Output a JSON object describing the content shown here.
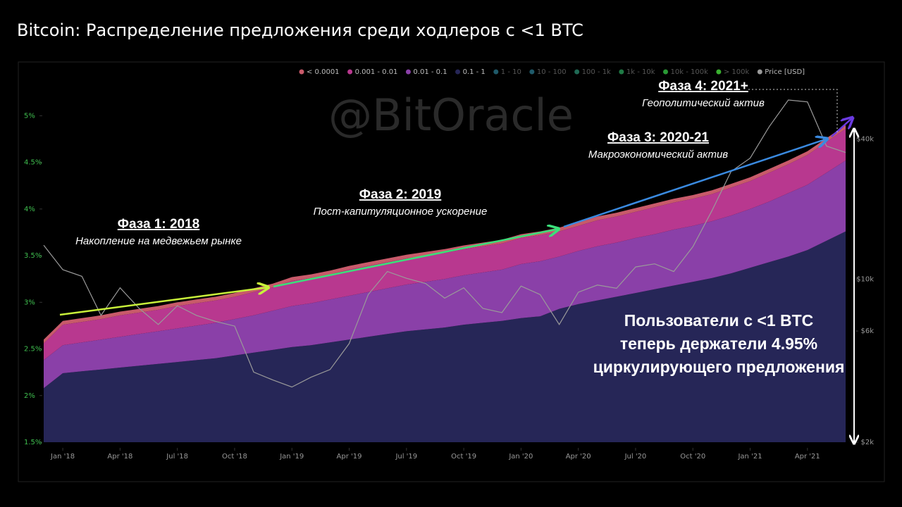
{
  "chart_data": {
    "type": "stacked-area",
    "title": "Bitcoin: Распределение предложения среди ходлеров с <1 BTC",
    "watermark": "@BitOracle",
    "x": [
      "2017-12",
      "2018-01",
      "2018-02",
      "2018-03",
      "2018-04",
      "2018-05",
      "2018-06",
      "2018-07",
      "2018-08",
      "2018-09",
      "2018-10",
      "2018-11",
      "2018-12",
      "2019-01",
      "2019-02",
      "2019-03",
      "2019-04",
      "2019-05",
      "2019-06",
      "2019-07",
      "2019-08",
      "2019-09",
      "2019-10",
      "2019-11",
      "2019-12",
      "2020-01",
      "2020-02",
      "2020-03",
      "2020-04",
      "2020-05",
      "2020-06",
      "2020-07",
      "2020-08",
      "2020-09",
      "2020-10",
      "2020-11",
      "2020-12",
      "2021-01",
      "2021-02",
      "2021-03",
      "2021-04",
      "2021-05",
      "2021-06"
    ],
    "xlim": [
      "2017-12",
      "2021-06"
    ],
    "xticks": [
      {
        "value": "2018-01",
        "label": "Jan '18"
      },
      {
        "value": "2018-04",
        "label": "Apr '18"
      },
      {
        "value": "2018-07",
        "label": "Jul '18"
      },
      {
        "value": "2018-10",
        "label": "Oct '18"
      },
      {
        "value": "2019-01",
        "label": "Jan '19"
      },
      {
        "value": "2019-04",
        "label": "Apr '19"
      },
      {
        "value": "2019-07",
        "label": "Jul '19"
      },
      {
        "value": "2019-10",
        "label": "Oct '19"
      },
      {
        "value": "2020-01",
        "label": "Jan '20"
      },
      {
        "value": "2020-04",
        "label": "Apr '20"
      },
      {
        "value": "2020-07",
        "label": "Jul '20"
      },
      {
        "value": "2020-10",
        "label": "Oct '20"
      },
      {
        "value": "2021-01",
        "label": "Jan '21"
      },
      {
        "value": "2021-04",
        "label": "Apr '21"
      }
    ],
    "ylim": [
      1.5,
      5.35
    ],
    "yticks": [
      {
        "value": 1.5,
        "label": "1.5%"
      },
      {
        "value": 2,
        "label": "2%"
      },
      {
        "value": 2.5,
        "label": "2.5%"
      },
      {
        "value": 3,
        "label": "3%"
      },
      {
        "value": 3.5,
        "label": "3.5%"
      },
      {
        "value": 4,
        "label": "4%"
      },
      {
        "value": 4.5,
        "label": "4.5%"
      },
      {
        "value": 5,
        "label": "5%"
      }
    ],
    "y2lim": [
      2000,
      69500
    ],
    "y2scale": "log",
    "y2ticks": [
      {
        "value": 2000,
        "label": "$2k"
      },
      {
        "value": 6000,
        "label": "$6k"
      },
      {
        "value": 10000,
        "label": "$10k"
      },
      {
        "value": 40000,
        "label": "$40k"
      }
    ],
    "series": [
      {
        "name": "< 0.0001",
        "color": "#c85a6a",
        "values": [
          0.04,
          0.04,
          0.04,
          0.04,
          0.04,
          0.04,
          0.04,
          0.04,
          0.04,
          0.04,
          0.04,
          0.04,
          0.04,
          0.04,
          0.04,
          0.04,
          0.04,
          0.04,
          0.04,
          0.04,
          0.04,
          0.04,
          0.04,
          0.04,
          0.04,
          0.04,
          0.04,
          0.04,
          0.04,
          0.04,
          0.04,
          0.04,
          0.04,
          0.04,
          0.04,
          0.04,
          0.04,
          0.04,
          0.04,
          0.04,
          0.04,
          0.04,
          0.04
        ]
      },
      {
        "name": "0.001 - 0.01",
        "color": "#b8388f",
        "values": [
          0.18,
          0.22,
          0.22,
          0.22,
          0.23,
          0.23,
          0.23,
          0.24,
          0.24,
          0.24,
          0.24,
          0.25,
          0.25,
          0.27,
          0.27,
          0.27,
          0.28,
          0.28,
          0.28,
          0.28,
          0.28,
          0.28,
          0.28,
          0.28,
          0.28,
          0.28,
          0.28,
          0.27,
          0.27,
          0.28,
          0.28,
          0.28,
          0.29,
          0.29,
          0.29,
          0.29,
          0.3,
          0.3,
          0.31,
          0.31,
          0.32,
          0.33,
          0.34
        ]
      },
      {
        "name": "0.01 - 0.1",
        "color": "#8a40a8",
        "values": [
          0.3,
          0.3,
          0.31,
          0.32,
          0.33,
          0.34,
          0.35,
          0.36,
          0.37,
          0.38,
          0.39,
          0.4,
          0.42,
          0.44,
          0.45,
          0.46,
          0.47,
          0.48,
          0.49,
          0.5,
          0.51,
          0.52,
          0.53,
          0.54,
          0.55,
          0.58,
          0.59,
          0.56,
          0.57,
          0.58,
          0.58,
          0.59,
          0.59,
          0.6,
          0.6,
          0.61,
          0.62,
          0.63,
          0.65,
          0.68,
          0.7,
          0.73,
          0.76
        ]
      },
      {
        "name": "0.1 - 1",
        "color": "#262657",
        "values": [
          2.08,
          2.24,
          2.26,
          2.28,
          2.3,
          2.32,
          2.34,
          2.36,
          2.38,
          2.4,
          2.43,
          2.46,
          2.49,
          2.52,
          2.54,
          2.57,
          2.6,
          2.63,
          2.66,
          2.69,
          2.71,
          2.73,
          2.76,
          2.78,
          2.8,
          2.83,
          2.85,
          2.93,
          2.98,
          3.02,
          3.06,
          3.1,
          3.14,
          3.18,
          3.22,
          3.26,
          3.31,
          3.37,
          3.43,
          3.49,
          3.56,
          3.66,
          3.76
        ]
      },
      {
        "name": "Price [USD]",
        "color": "#9a9a9a",
        "axis": "y2",
        "values": [
          14000,
          11000,
          10300,
          7000,
          9200,
          7500,
          6400,
          7700,
          7000,
          6600,
          6300,
          4000,
          3700,
          3450,
          3800,
          4100,
          5300,
          8600,
          10800,
          10100,
          9600,
          8300,
          9200,
          7500,
          7200,
          9350,
          8600,
          6400,
          8800,
          9450,
          9150,
          11300,
          11650,
          10800,
          13800,
          19700,
          29000,
          33100,
          45200,
          58800,
          57700,
          37300,
          35000
        ]
      }
    ],
    "inactive_series": [
      {
        "name": "1 - 10",
        "color": "#1f5a6a"
      },
      {
        "name": "10 - 100",
        "color": "#1f5a6a"
      },
      {
        "name": "100 - 1k",
        "color": "#1f6a55"
      },
      {
        "name": "1k - 10k",
        "color": "#1f7a45"
      },
      {
        "name": "10k - 100k",
        "color": "#2a9a35"
      },
      {
        "name": "> 100k",
        "color": "#3ab030"
      }
    ],
    "annotations": [
      {
        "title": "Фаза 1: 2018",
        "subtitle": "Накопление на медвежьем рынке"
      },
      {
        "title": "Фаза 2: 2019",
        "subtitle": "Пост-капитуляционное ускорение"
      },
      {
        "title": "Фаза 3: 2020-21",
        "subtitle": "Макроэкономический актив"
      },
      {
        "title": "Фаза 4: 2021+",
        "subtitle": "Геополитический актив"
      }
    ],
    "note_lines": [
      "Пользователи с <1 BTC",
      "теперь держатели 4.95%",
      "циркулирующего предложения"
    ]
  }
}
